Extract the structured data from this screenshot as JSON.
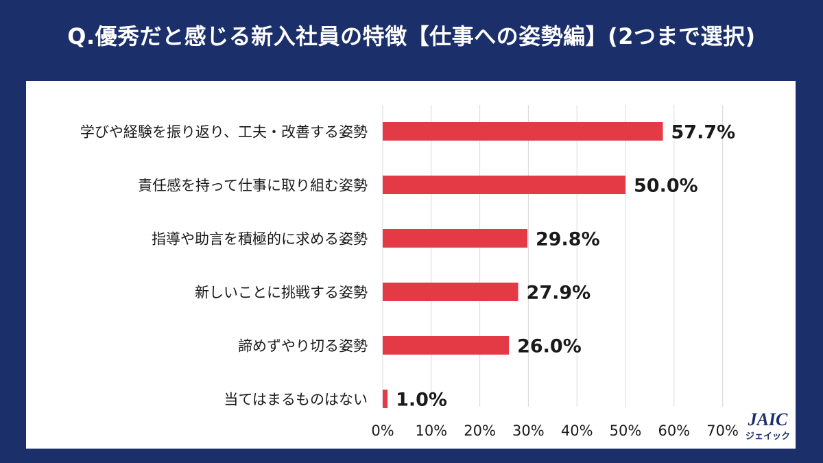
{
  "title": "Q.優秀だと感じる新入社員の特徴【仕事への姿勢編】(2つまで選択)",
  "logo": {
    "mark": "JAIC",
    "kana": "ジェイック"
  },
  "colors": {
    "background": "#1b2f6b",
    "bar": "#e33a45",
    "grid": "#d9d9d9",
    "text": "#1a1a1a"
  },
  "chart_data": {
    "type": "bar",
    "orientation": "horizontal",
    "title": "Q.優秀だと感じる新入社員の特徴【仕事への姿勢編】(2つまで選択)",
    "categories": [
      "学びや経験を振り返り、工夫・改善する姿勢",
      "責任感を持って仕事に取り組む姿勢",
      "指導や助言を積極的に求める姿勢",
      "新しいことに挑戦する姿勢",
      "諦めずやり切る姿勢",
      "当てはまるものはない"
    ],
    "values": [
      57.7,
      50.0,
      29.8,
      27.9,
      26.0,
      1.0
    ],
    "value_labels": [
      "57.7%",
      "50.0%",
      "29.8%",
      "27.9%",
      "26.0%",
      "1.0%"
    ],
    "xlim": [
      0,
      70
    ],
    "xticks": [
      0,
      10,
      20,
      30,
      40,
      50,
      60,
      70
    ],
    "xtick_labels": [
      "0%",
      "10%",
      "20%",
      "30%",
      "40%",
      "50%",
      "60%",
      "70%"
    ],
    "grid": true,
    "legend": "none"
  }
}
